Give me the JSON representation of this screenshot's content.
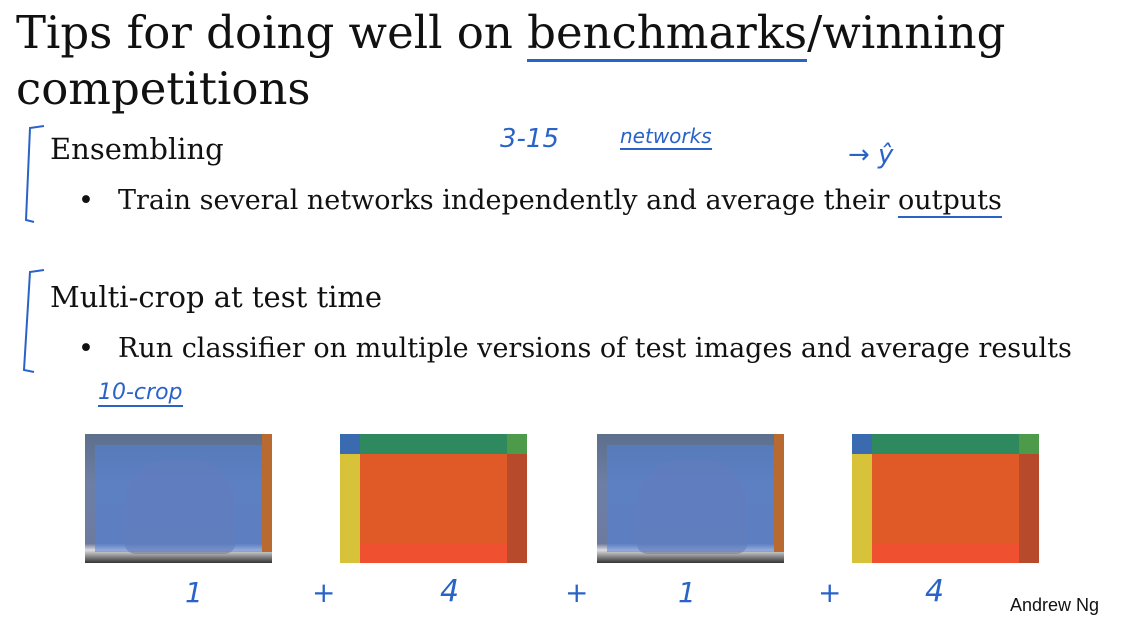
{
  "slide": {
    "title_line1_before": "Tips for doing well on ",
    "title_underlined": "benchmarks",
    "title_line1_after": "/winning",
    "title_line2": "competitions",
    "sections": [
      {
        "heading": "Ensembling",
        "bullet_before": "Train several networks independently and average their ",
        "bullet_underlined": "outputs"
      },
      {
        "heading": "Multi-crop at test time",
        "bullet_before": "Run classifier on multiple versions of test images and average results",
        "bullet_underlined": ""
      }
    ],
    "bullet_symbol": "•",
    "author": "Andrew Ng"
  },
  "annotations": {
    "range": "3-15",
    "networks": "networks",
    "arrow_yhat": "→ ŷ",
    "ten_crop": "10-crop",
    "counts": [
      "1",
      "+",
      "4",
      "+",
      "1",
      "+",
      "4"
    ]
  },
  "colors": {
    "ink": "#2a63c8",
    "crop_center": "#e05a28"
  }
}
